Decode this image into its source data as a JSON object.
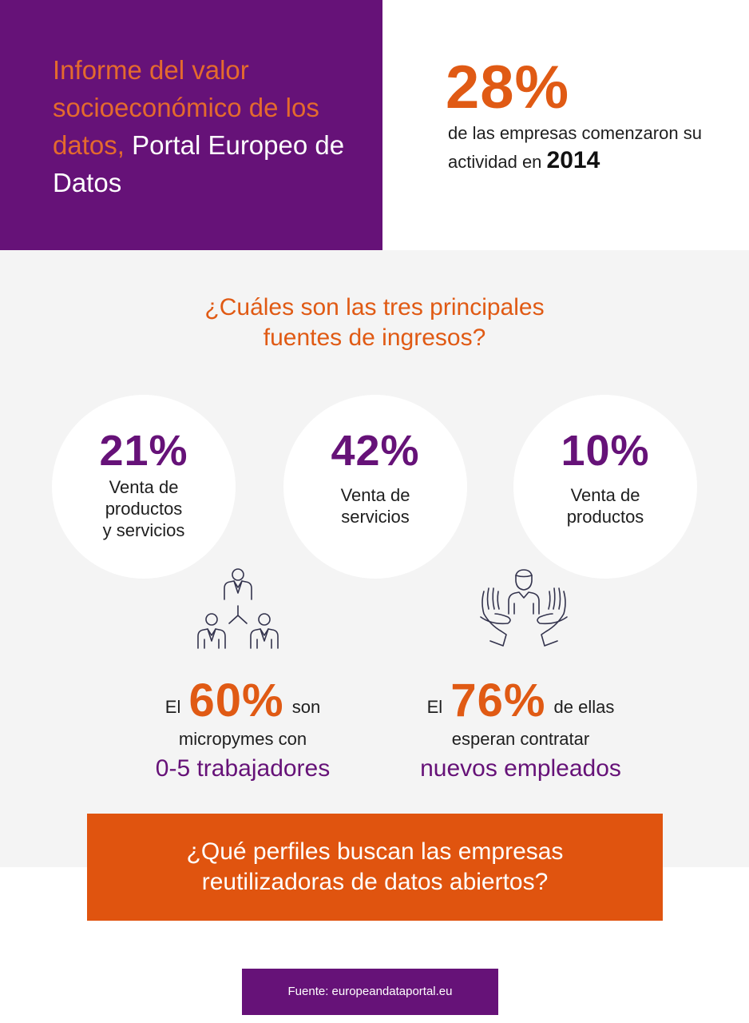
{
  "header": {
    "title_orange": "Informe del valor socioeconómico de los datos,",
    "title_white": "Portal Europeo de Datos"
  },
  "headline_stat": {
    "value": "28%",
    "text": "de las empresas comenzaron su actividad en",
    "year": "2014"
  },
  "question": {
    "line1": "¿Cuáles son las tres principales",
    "line2": "fuentes de ingresos?"
  },
  "revenue_sources": [
    {
      "pct": "21%",
      "lines": [
        "Venta de",
        "productos",
        "y servicios"
      ]
    },
    {
      "pct": "42%",
      "lines": [
        "Venta de",
        "servicios"
      ]
    },
    {
      "pct": "10%",
      "lines": [
        "Venta de",
        "productos"
      ]
    }
  ],
  "icons": {
    "team": "team-hierarchy-icon",
    "hands": "hands-holding-person-icon"
  },
  "stats": [
    {
      "prefix": "El",
      "pct": "60%",
      "suffix": "son",
      "line2": "micropymes con",
      "highlight": "0-5 trabajadores"
    },
    {
      "prefix": "El",
      "pct": "76%",
      "suffix": "de ellas",
      "line2": "esperan contratar",
      "highlight": "nuevos empleados"
    }
  ],
  "banner": {
    "line1": "¿Qué perfiles buscan las empresas",
    "line2": "reutilizadoras de datos abiertos?"
  },
  "source": "Fuente: europeandataportal.eu",
  "colors": {
    "purple": "#661278",
    "orange": "#e05a14",
    "light_orange": "#e46a2d",
    "grey": "#f4f4f4"
  }
}
